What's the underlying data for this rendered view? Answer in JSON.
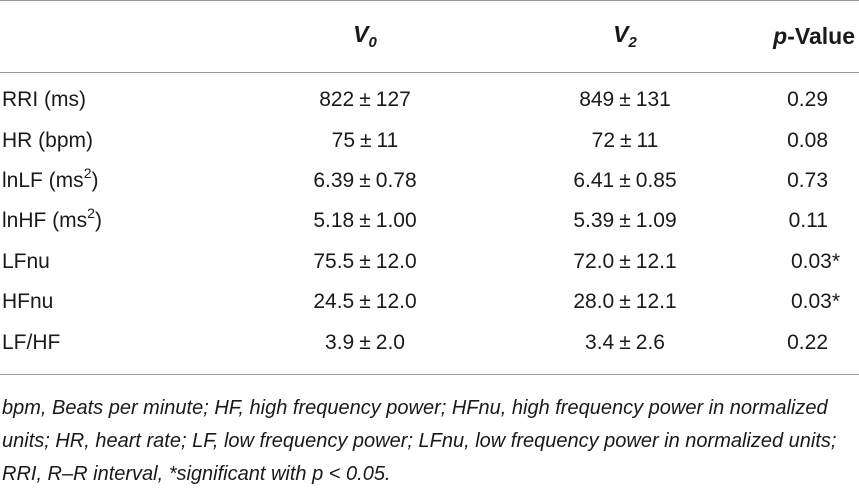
{
  "table": {
    "headers": {
      "v0": {
        "main": "V",
        "sub": "0"
      },
      "v2": {
        "main": "V",
        "sub": "2"
      },
      "pvalue": {
        "prefix": "p",
        "rest": "-Value"
      }
    },
    "rows": [
      {
        "label": "RRI (ms)",
        "label_sup": "",
        "label_after": "",
        "v0_mean": "822",
        "v0_sd": "127",
        "v2_mean": "849",
        "v2_sd": "131",
        "p": "0.29"
      },
      {
        "label": "HR (bpm)",
        "label_sup": "",
        "label_after": "",
        "v0_mean": "75",
        "v0_sd": "11",
        "v2_mean": "72",
        "v2_sd": "11",
        "p": "0.08"
      },
      {
        "label": "lnLF (ms",
        "label_sup": "2",
        "label_after": ")",
        "v0_mean": "6.39",
        "v0_sd": "0.78",
        "v2_mean": "6.41",
        "v2_sd": "0.85",
        "p": "0.73"
      },
      {
        "label": "lnHF (ms",
        "label_sup": "2",
        "label_after": ")",
        "v0_mean": "5.18",
        "v0_sd": "1.00",
        "v2_mean": "5.39",
        "v2_sd": "1.09",
        "p": "0.11"
      },
      {
        "label": "LFnu",
        "label_sup": "",
        "label_after": "",
        "v0_mean": "75.5",
        "v0_sd": "12.0",
        "v2_mean": "72.0",
        "v2_sd": "12.1",
        "p": "0.03*"
      },
      {
        "label": "HFnu",
        "label_sup": "",
        "label_after": "",
        "v0_mean": "24.5",
        "v0_sd": "12.0",
        "v2_mean": "28.0",
        "v2_sd": "12.1",
        "p": "0.03*"
      },
      {
        "label": "LF/HF",
        "label_sup": "",
        "label_after": "",
        "v0_mean": "3.9",
        "v0_sd": "2.0",
        "v2_mean": "3.4",
        "v2_sd": "2.6",
        "p": "0.22"
      }
    ],
    "pm_symbol": "±"
  },
  "footnote": "bpm, Beats per minute; HF, high frequency power; HFnu, high frequency power in normalized units; HR, heart rate; LF, low frequency power; LFnu, low frequency power in normalized units; RRI, R–R interval, *significant with p < 0.05."
}
